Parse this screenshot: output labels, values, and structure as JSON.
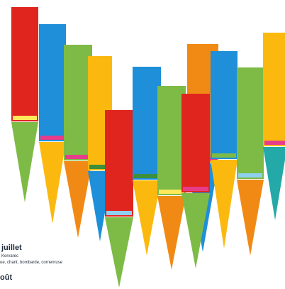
{
  "colors": {
    "red": "#e0251f",
    "blue": "#1e8fd8",
    "green": "#7dbb46",
    "yellow": "#fbb910",
    "orange": "#f18a14",
    "teal": "#23a9a7",
    "light_yellow": "#fde85c",
    "pink": "#e63c8c",
    "light_blue": "#8fd0f0",
    "pale_yellow": "#f5f08a",
    "dark_green": "#3d8f3b",
    "text": "#1f2a3a"
  },
  "pencils": [
    {
      "body": "red",
      "band": "light_yellow",
      "tip": "green",
      "level": 0.94
    },
    {
      "body": "blue",
      "band": "pink",
      "tip": "yellow",
      "level": 0.85
    },
    {
      "body": "green",
      "band": "pink",
      "tip": "orange",
      "level": 0.66
    },
    {
      "body": "yellow",
      "band": "dark_green",
      "tip": "blue",
      "level": 0.71
    },
    {
      "body": "red",
      "band": "light_blue",
      "tip": "green",
      "level": 0.33
    },
    {
      "body": "blue",
      "band": "dark_green",
      "tip": "yellow",
      "level": 0.64
    },
    {
      "body": "green",
      "band": "light_yellow",
      "tip": "orange",
      "level": 0.57
    },
    {
      "body": "orange",
      "band": "pink",
      "tip": "blue",
      "level": 0.58
    },
    {
      "body": "red",
      "band": "pink",
      "tip": "green",
      "level": 0.55
    },
    {
      "body": "blue",
      "band": "green",
      "tip": "yellow",
      "level": 0.79
    },
    {
      "body": "green",
      "band": "light_blue",
      "tip": "orange",
      "level": 0.59
    },
    {
      "body": "yellow",
      "band": "pink",
      "tip": "teal",
      "level": 0.8
    }
  ],
  "captions": {
    "line1": "juillet",
    "line2": "Kervarec",
    "line3": "ue, chant, bombarde, cornemuse",
    "line4": "oût"
  }
}
